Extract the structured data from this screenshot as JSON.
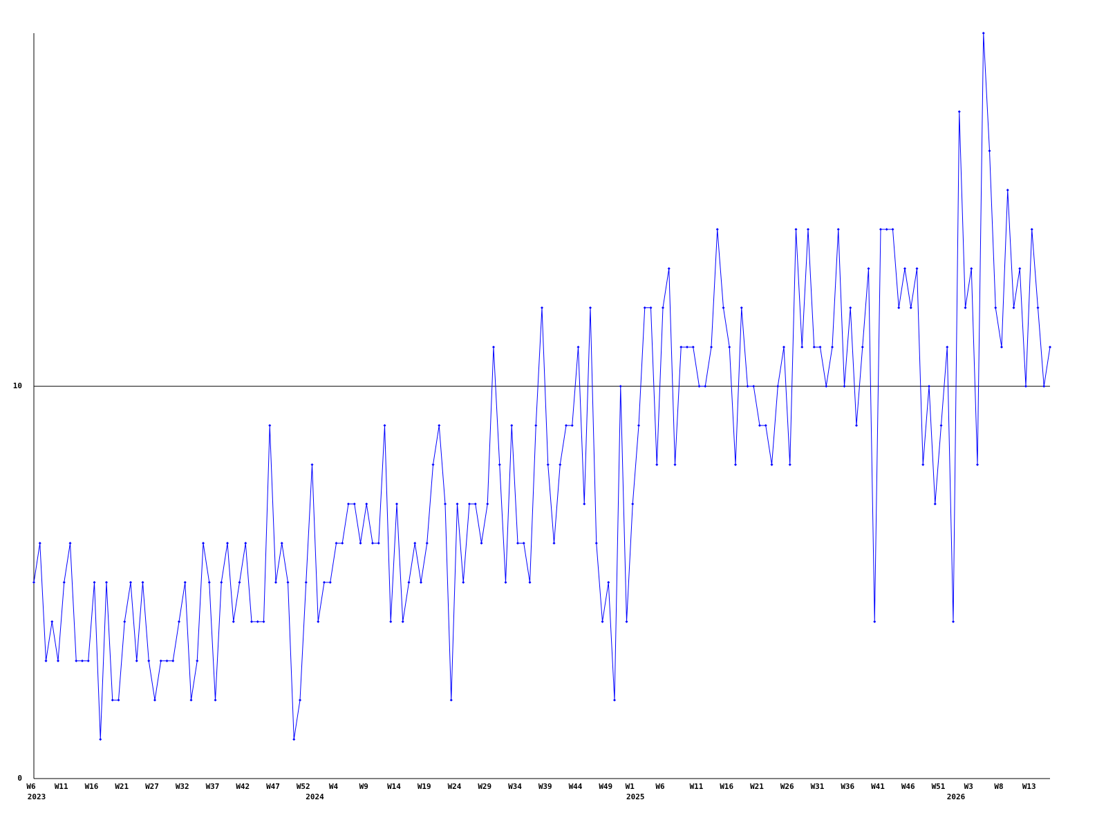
{
  "chart_data": {
    "type": "line",
    "categories": [
      "W6",
      null,
      null,
      null,
      null,
      "W11",
      null,
      null,
      null,
      null,
      "W16",
      null,
      null,
      null,
      null,
      "W21",
      null,
      null,
      null,
      null,
      "W27",
      null,
      null,
      null,
      null,
      "W32",
      null,
      null,
      null,
      null,
      "W37",
      null,
      null,
      null,
      null,
      "W42",
      null,
      null,
      null,
      null,
      "W47",
      null,
      null,
      null,
      null,
      "W52",
      null,
      null,
      null,
      null,
      "W4",
      null,
      null,
      null,
      null,
      "W9",
      null,
      null,
      null,
      null,
      "W14",
      null,
      null,
      null,
      null,
      "W19",
      null,
      null,
      null,
      null,
      "W24",
      null,
      null,
      null,
      null,
      "W29",
      null,
      null,
      null,
      null,
      "W34",
      null,
      null,
      null,
      null,
      "W39",
      null,
      null,
      null,
      null,
      "W44",
      null,
      null,
      null,
      null,
      "W49",
      null,
      null,
      null,
      "W1",
      null,
      null,
      null,
      null,
      "W6",
      null,
      null,
      null,
      null,
      null,
      "W11",
      null,
      null,
      null,
      null,
      "W16",
      null,
      null,
      null,
      null,
      "W21",
      null,
      null,
      null,
      null,
      "W26",
      null,
      null,
      null,
      null,
      "W31",
      null,
      null,
      null,
      null,
      "W36",
      null,
      null,
      null,
      null,
      "W41",
      null,
      null,
      null,
      null,
      "W46",
      null,
      null,
      null,
      null,
      "W51",
      null,
      null,
      null,
      null,
      "W3",
      null,
      null,
      null,
      null,
      "W8",
      null,
      null,
      null,
      null,
      "W13",
      null,
      null,
      null
    ],
    "years": [
      "2023",
      null,
      null,
      null,
      null,
      null,
      null,
      null,
      null,
      null,
      null,
      null,
      null,
      null,
      null,
      null,
      null,
      null,
      null,
      null,
      null,
      null,
      null,
      null,
      null,
      null,
      null,
      null,
      null,
      null,
      null,
      null,
      null,
      null,
      null,
      null,
      null,
      null,
      null,
      null,
      null,
      null,
      null,
      null,
      null,
      null,
      "2024",
      null,
      null,
      null,
      null,
      null,
      null,
      null,
      null,
      null,
      null,
      null,
      null,
      null,
      null,
      null,
      null,
      null,
      null,
      null,
      null,
      null,
      null,
      null,
      null,
      null,
      null,
      null,
      null,
      null,
      null,
      null,
      null,
      null,
      null,
      null,
      null,
      null,
      null,
      null,
      null,
      null,
      null,
      null,
      null,
      null,
      null,
      null,
      null,
      null,
      null,
      null,
      null,
      "2025",
      null,
      null,
      null,
      null,
      null,
      null,
      null,
      null,
      null,
      null,
      null,
      null,
      null,
      null,
      null,
      null,
      null,
      null,
      null,
      null,
      null,
      null,
      null,
      null,
      null,
      null,
      null,
      null,
      null,
      null,
      null,
      null,
      null,
      null,
      null,
      null,
      null,
      null,
      null,
      null,
      null,
      null,
      null,
      null,
      null,
      null,
      null,
      null,
      null,
      null,
      null,
      null,
      "2026",
      null,
      null,
      null,
      null,
      null,
      null,
      null,
      null,
      null,
      null,
      null,
      null,
      null,
      null,
      null,
      null
    ],
    "series": [
      {
        "color": "#0000ff",
        "values": [
          5,
          6,
          3,
          4,
          3,
          5,
          6,
          3,
          3,
          3,
          5,
          1,
          5,
          2,
          2,
          4,
          5,
          3,
          5,
          3,
          2,
          3,
          3,
          3,
          4,
          5,
          2,
          3,
          6,
          5,
          2,
          5,
          6,
          4,
          5,
          6,
          4,
          4,
          4,
          9,
          5,
          6,
          5,
          1,
          2,
          5,
          8,
          4,
          5,
          5,
          6,
          6,
          7,
          7,
          6,
          7,
          6,
          6,
          9,
          4,
          7,
          4,
          5,
          6,
          5,
          6,
          8,
          9,
          7,
          2,
          7,
          5,
          7,
          7,
          6,
          7,
          11,
          8,
          5,
          9,
          6,
          6,
          5,
          9,
          12,
          8,
          6,
          8,
          9,
          9,
          11,
          7,
          12,
          6,
          4,
          5,
          2,
          10,
          4,
          7,
          9,
          12,
          12,
          8,
          12,
          13,
          8,
          11,
          11,
          11,
          10,
          10,
          11,
          14,
          12,
          11,
          8,
          12,
          10,
          10,
          9,
          9,
          8,
          10,
          11,
          8,
          14,
          11,
          14,
          11,
          11,
          10,
          11,
          14,
          10,
          12,
          9,
          11,
          13,
          4,
          14,
          14,
          14,
          12,
          13,
          12,
          13,
          8,
          10,
          7,
          9,
          11,
          4,
          17,
          12,
          13,
          8,
          19,
          16,
          12,
          11,
          15,
          12,
          13,
          10,
          14,
          12,
          10,
          11
        ]
      }
    ],
    "ylim": [
      0,
      19
    ],
    "yticks": [
      0,
      10
    ],
    "grid": true
  }
}
